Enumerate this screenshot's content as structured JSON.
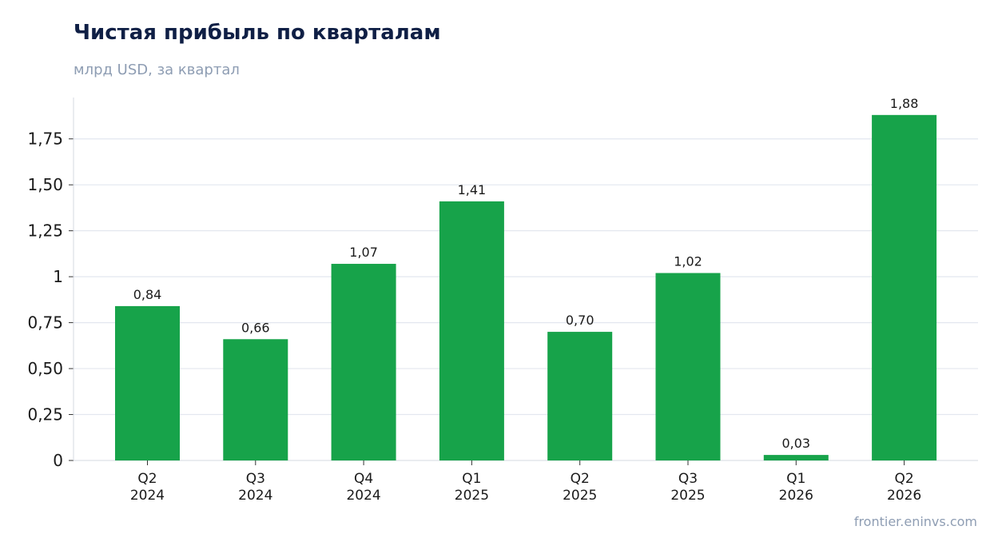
{
  "chart_data": {
    "type": "bar",
    "title": "Чистая прибыль по кварталам",
    "subtitle": "млрд USD, за квартал",
    "categories": [
      [
        "Q2",
        "2024"
      ],
      [
        "Q3",
        "2024"
      ],
      [
        "Q4",
        "2024"
      ],
      [
        "Q1",
        "2025"
      ],
      [
        "Q2",
        "2025"
      ],
      [
        "Q3",
        "2025"
      ],
      [
        "Q1",
        "2026"
      ],
      [
        "Q2",
        "2026"
      ]
    ],
    "values": [
      0.84,
      0.66,
      1.07,
      1.41,
      0.7,
      1.02,
      0.03,
      1.88
    ],
    "data_labels": [
      "0,84",
      "0,66",
      "1,07",
      "1,41",
      "0,70",
      "1,02",
      "0,03",
      "1,88"
    ],
    "ylim": [
      0,
      1.975
    ],
    "yticks": [
      {
        "value": 0,
        "label": "0"
      },
      {
        "value": 0.25,
        "label": "0,25"
      },
      {
        "value": 0.5,
        "label": "0,50"
      },
      {
        "value": 0.75,
        "label": "0,75"
      },
      {
        "value": 1,
        "label": "1"
      },
      {
        "value": 1.25,
        "label": "1,25"
      },
      {
        "value": 1.5,
        "label": "1,50"
      },
      {
        "value": 1.75,
        "label": "1,75"
      }
    ],
    "grid": true,
    "bar_color": "#17a34a",
    "grid_color": "#e3e7ef",
    "axis_color": "#d5d9e0"
  },
  "source": "frontier.eninvs.com"
}
